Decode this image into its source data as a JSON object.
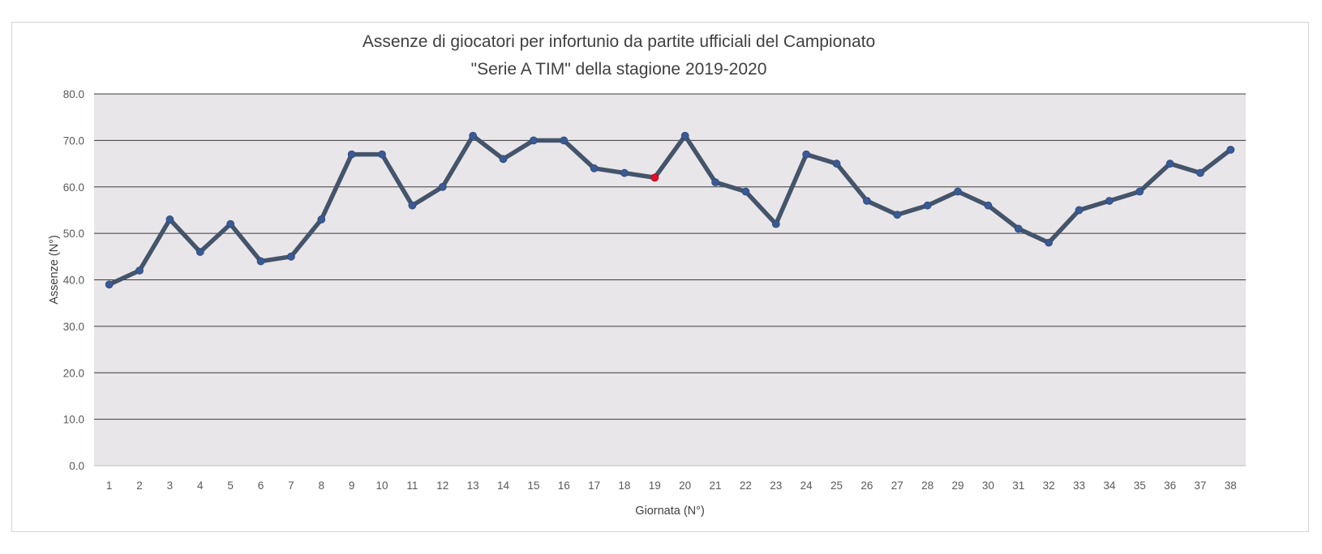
{
  "chart_data": {
    "type": "line",
    "title_lines": [
      "Assenze di giocatori per infortunio da partite ufficiali del Campionato",
      "\"Serie A TIM\" della stagione  2019-2020"
    ],
    "xlabel": "Giornata (N°)",
    "ylabel": "Assenze (N°)",
    "ylim": [
      0,
      80
    ],
    "yticks": [
      "0.0",
      "10.0",
      "20.0",
      "30.0",
      "40.0",
      "50.0",
      "60.0",
      "70.0",
      "80.0"
    ],
    "grid": true,
    "legend": "none",
    "colors": {
      "line": "#44546A",
      "marker": "#3A5A95",
      "highlight_marker": "#E0102A",
      "plot_background": "#E9E6E9",
      "gridline": "#3A3A3A"
    },
    "categories": [
      "1",
      "2",
      "3",
      "4",
      "5",
      "6",
      "7",
      "8",
      "9",
      "10",
      "11",
      "12",
      "13",
      "14",
      "15",
      "16",
      "17",
      "18",
      "19",
      "20",
      "21",
      "22",
      "23",
      "24",
      "25",
      "26",
      "27",
      "28",
      "29",
      "30",
      "31",
      "32",
      "33",
      "34",
      "35",
      "36",
      "37",
      "38"
    ],
    "highlight_index": 18,
    "series": [
      {
        "values": [
          39,
          42,
          53,
          46,
          52,
          44,
          45,
          53,
          67,
          67,
          56,
          60,
          71,
          66,
          70,
          70,
          64,
          63,
          62,
          71,
          61,
          59,
          52,
          67,
          65,
          57,
          54,
          56,
          59,
          56,
          51,
          48,
          55,
          57,
          59,
          65,
          63,
          68
        ]
      }
    ]
  }
}
